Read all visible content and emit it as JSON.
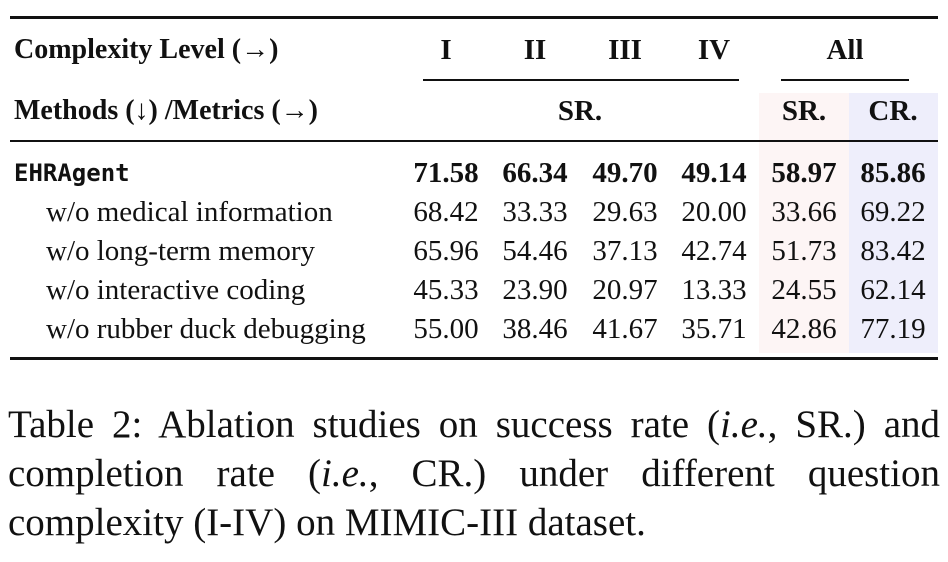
{
  "table": {
    "header_row1": {
      "label": "Complexity Level (→)",
      "levels": [
        "I",
        "II",
        "III",
        "IV"
      ],
      "all": "All"
    },
    "header_row2": {
      "label": "Methods (↓) /Metrics (→)",
      "metric_levels": "SR.",
      "metric_all_sr": "SR.",
      "metric_all_cr": "CR."
    },
    "rows": [
      {
        "method": "EHRAgent",
        "values": [
          "71.58",
          "66.34",
          "49.70",
          "49.14",
          "58.97",
          "85.86"
        ]
      },
      {
        "method": "w/o medical information",
        "values": [
          "68.42",
          "33.33",
          "29.63",
          "20.00",
          "33.66",
          "69.22"
        ]
      },
      {
        "method": "w/o long-term memory",
        "values": [
          "65.96",
          "54.46",
          "37.13",
          "42.74",
          "51.73",
          "83.42"
        ]
      },
      {
        "method": "w/o interactive coding",
        "values": [
          "45.33",
          "23.90",
          "20.97",
          "13.33",
          "24.55",
          "62.14"
        ]
      },
      {
        "method": "w/o rubber duck debugging",
        "values": [
          "55.00",
          "38.46",
          "41.67",
          "35.71",
          "42.86",
          "77.19"
        ]
      }
    ],
    "highlight_colors": {
      "sr": "#fdf5f5",
      "cr": "#eeeefb"
    }
  },
  "caption": {
    "prefix": "Table 2:  Ablation studies on success rate (",
    "ie1": "i.e.",
    "mid1": ", SR.) and completion rate (",
    "ie2": "i.e.",
    "suffix": ", CR.) under different question complexity (I-IV) on MIMIC-III dataset."
  }
}
